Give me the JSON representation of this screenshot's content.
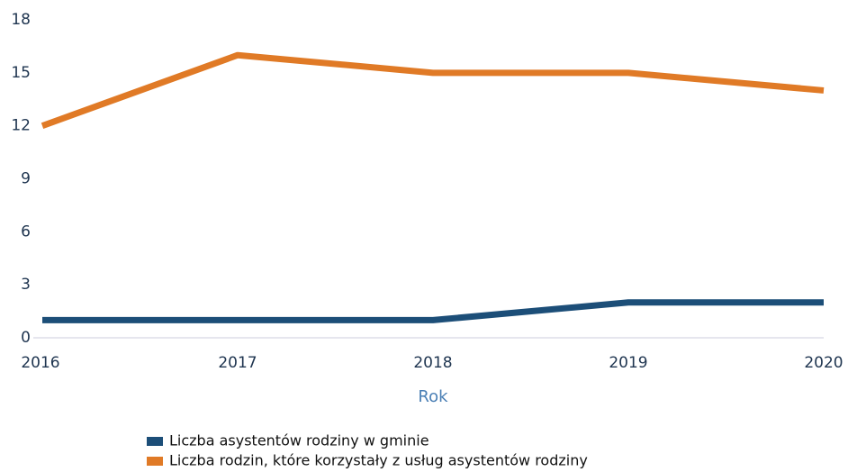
{
  "chart_data": {
    "type": "line",
    "x_label": "Rok",
    "categories": [
      "2016",
      "2017",
      "2018",
      "2019",
      "2020"
    ],
    "series": [
      {
        "name": "Liczba asystentów rodziny w gminie",
        "color": "#1c4e78",
        "values": [
          1,
          1,
          1,
          2,
          2
        ]
      },
      {
        "name": "Liczba rodzin, które korzystały z usług asystentów rodziny",
        "color": "#e07a26",
        "values": [
          12,
          16,
          15,
          15,
          14
        ]
      }
    ],
    "ylim": [
      0,
      18
    ],
    "yticks": [
      0,
      3,
      6,
      9,
      12,
      15,
      18
    ],
    "grid": false
  }
}
